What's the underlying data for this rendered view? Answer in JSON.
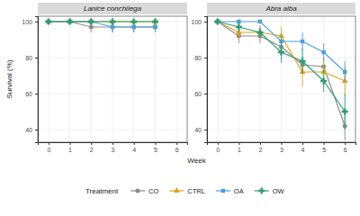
{
  "chart_data": [
    {
      "type": "line",
      "title": "Lanice conchilega",
      "x_label": "Week",
      "y_label": "Survival (%)",
      "legend": "bottom",
      "legend_title": "Treatment",
      "grid": true,
      "x": [
        0,
        1,
        2,
        3,
        4,
        5
      ],
      "xlim": [
        -0.5,
        6.5
      ],
      "xticks": [
        0,
        1,
        2,
        3,
        4,
        5,
        6
      ],
      "ylim": [
        33,
        103
      ],
      "yticks": [
        40,
        60,
        80,
        100
      ],
      "series": [
        {
          "name": "CO",
          "color": "#8c8c8c",
          "marker": "circle",
          "values": [
            100,
            100,
            97,
            97,
            97,
            97
          ],
          "errors": [
            0,
            0,
            3,
            3,
            3,
            3
          ]
        },
        {
          "name": "CTRL",
          "color": "#e0a31a",
          "marker": "triangle",
          "values": [
            100,
            100,
            100,
            100,
            100,
            100
          ],
          "errors": [
            0,
            0,
            0,
            0,
            0,
            0
          ]
        },
        {
          "name": "OA",
          "color": "#4f9fd9",
          "marker": "square",
          "values": [
            100,
            100,
            100,
            97,
            97,
            97
          ],
          "errors": [
            0,
            0,
            0,
            3,
            3,
            3
          ]
        },
        {
          "name": "OW",
          "color": "#2e9e75",
          "marker": "plus",
          "values": [
            100,
            100,
            100,
            100,
            100,
            100
          ],
          "errors": [
            0,
            0,
            0,
            0,
            0,
            0
          ]
        }
      ]
    },
    {
      "type": "line",
      "title": "Abra alba",
      "grid": true,
      "x": [
        0,
        1,
        2,
        3,
        4,
        5,
        6
      ],
      "xlim": [
        -0.5,
        6.5
      ],
      "xticks": [
        0,
        1,
        2,
        3,
        4,
        5,
        6
      ],
      "ylim": [
        33,
        103
      ],
      "yticks": [
        40,
        60,
        80,
        100
      ],
      "series": [
        {
          "name": "CO",
          "color": "#8c8c8c",
          "marker": "circle",
          "values": [
            100,
            92,
            92,
            86,
            76,
            75,
            42
          ],
          "errors": [
            0,
            4,
            4,
            4,
            5,
            5,
            8
          ]
        },
        {
          "name": "CTRL",
          "color": "#e0a31a",
          "marker": "triangle",
          "values": [
            100,
            94,
            94,
            92,
            72,
            72,
            67
          ],
          "errors": [
            0,
            4,
            4,
            5,
            8,
            8,
            8
          ]
        },
        {
          "name": "OA",
          "color": "#4f9fd9",
          "marker": "square",
          "values": [
            100,
            100,
            100,
            89,
            89,
            83,
            72
          ],
          "errors": [
            0,
            0,
            0,
            4,
            5,
            5,
            6
          ]
        },
        {
          "name": "OW",
          "color": "#2e9e75",
          "marker": "plus",
          "values": [
            100,
            97,
            94,
            83,
            78,
            67,
            50
          ],
          "errors": [
            0,
            3,
            3,
            6,
            7,
            6,
            10
          ]
        }
      ]
    }
  ]
}
